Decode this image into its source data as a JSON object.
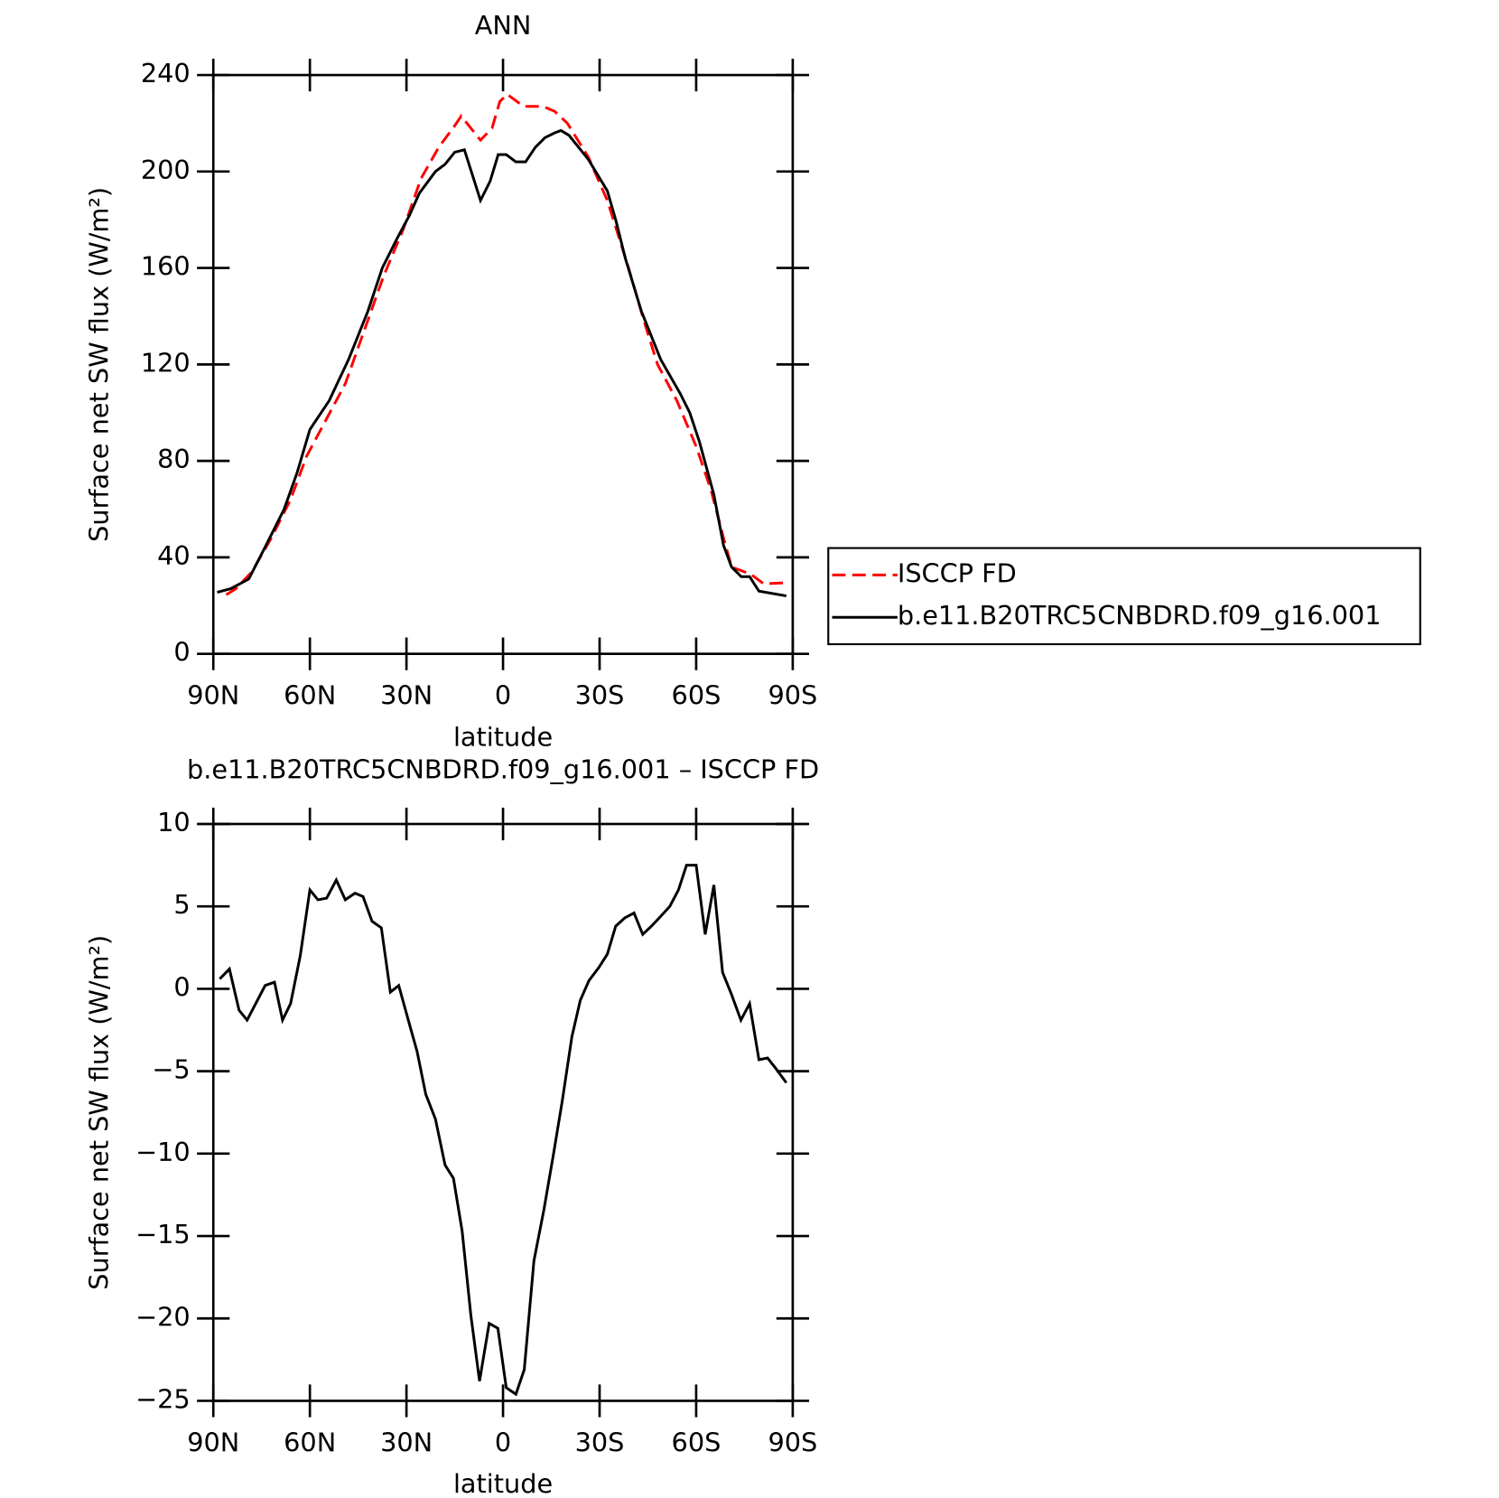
{
  "chart_data": [
    {
      "type": "line",
      "title": "ANN",
      "x_label": "latitude",
      "y_label": "Surface net SW flux (W/m²)",
      "xlim": [
        90,
        -90
      ],
      "xticks": [
        {
          "value": 90,
          "label": "90N"
        },
        {
          "value": 60,
          "label": "60N"
        },
        {
          "value": 30,
          "label": "30N"
        },
        0,
        {
          "value": -30,
          "label": "30S"
        },
        {
          "value": -60,
          "label": "60S"
        },
        {
          "value": -90,
          "label": "90S"
        }
      ],
      "ylim": [
        0,
        240
      ],
      "yticks": [
        0,
        40,
        80,
        120,
        160,
        200,
        240
      ],
      "legend": "right",
      "series": [
        {
          "name": "ISCCP FD",
          "color": "#ff0000",
          "dashed": true,
          "x": [
            86,
            83,
            78,
            72,
            66,
            61,
            55,
            49,
            43.4,
            37,
            31,
            25.5,
            20,
            15,
            13,
            10,
            7,
            3.4,
            1,
            -1.3,
            -6.4,
            -12.4,
            -16,
            -20,
            -26.5,
            -32.4,
            -39,
            -43.8,
            -48,
            -54,
            -60,
            -64.6,
            -68.5,
            -71,
            -77,
            -81,
            -88
          ],
          "values": [
            24.5,
            27,
            34,
            48,
            64,
            82,
            97,
            112,
            133,
            157,
            176,
            197,
            210,
            219,
            223,
            218,
            213,
            218,
            229,
            232,
            227,
            227,
            225,
            220,
            206,
            188,
            160,
            138,
            120,
            105,
            86,
            68,
            48,
            36,
            33,
            29,
            29.5
          ]
        },
        {
          "name": "b.e11.B20TRC5CNBDRD.f09_g16.001",
          "color": "#000000",
          "dashed": false,
          "x": [
            88.8,
            84.6,
            79,
            74,
            68,
            64,
            60,
            54,
            48,
            42,
            37.5,
            33,
            29,
            26,
            21,
            18,
            15,
            12,
            7,
            4,
            1.5,
            -1,
            -4,
            -7,
            -10,
            -13,
            -16,
            -18,
            -20.5,
            -26.5,
            -32.4,
            -35,
            -38,
            -43,
            -49,
            -55,
            -58,
            -61,
            -65.5,
            -68.5,
            -71,
            -74,
            -76.6,
            -79.5,
            -88
          ],
          "values": [
            25.5,
            27,
            31,
            44,
            60,
            75,
            93,
            105,
            122,
            142,
            160,
            172,
            182,
            191,
            200,
            203,
            208,
            209,
            188,
            196,
            207,
            207,
            204,
            204,
            210,
            214,
            216,
            217,
            215,
            205,
            192,
            180,
            164,
            142,
            122,
            108,
            100,
            88,
            66,
            45,
            36,
            32,
            32,
            26,
            24
          ]
        }
      ]
    },
    {
      "type": "line",
      "title": "b.e11.B20TRC5CNBDRD.f09_g16.001 – ISCCP FD",
      "x_label": "latitude",
      "y_label": "Surface net SW flux (W/m²)",
      "xlim": [
        90,
        -90
      ],
      "xticks": [
        {
          "value": 90,
          "label": "90N"
        },
        {
          "value": 60,
          "label": "60N"
        },
        {
          "value": 30,
          "label": "30N"
        },
        0,
        {
          "value": -30,
          "label": "30S"
        },
        {
          "value": -60,
          "label": "60S"
        },
        {
          "value": -90,
          "label": "90S"
        }
      ],
      "ylim": [
        -25,
        10
      ],
      "yticks": [
        {
          "value": -25,
          "label": "−25"
        },
        {
          "value": -20,
          "label": "−20"
        },
        {
          "value": -15,
          "label": "−15"
        },
        {
          "value": -10,
          "label": "−10"
        },
        {
          "value": -5,
          "label": "−5"
        },
        0,
        5,
        10
      ],
      "series": [
        {
          "color": "#000000",
          "dashed": false,
          "x": [
            88,
            85,
            82,
            79.5,
            73.9,
            71,
            68.5,
            66,
            63,
            60,
            57.5,
            54.8,
            51.8,
            49,
            46,
            43.5,
            40.7,
            37.8,
            35,
            32.4,
            29,
            26.7,
            24,
            21,
            18,
            15.4,
            12.7,
            10,
            7.3,
            4.3,
            1.6,
            -1,
            -4,
            -6.6,
            -9.6,
            -12.7,
            -15.7,
            -18.4,
            -21.4,
            -24,
            -26.7,
            -29.8,
            -32.4,
            -35,
            -37.8,
            -40.7,
            -43.4,
            -46.1,
            -49,
            -51.8,
            -54.5,
            -57,
            -60,
            -62.8,
            -65.5,
            -68.2,
            -70.9,
            -73.9,
            -76.6,
            -79.5,
            -82.2,
            -85,
            -88
          ],
          "values": [
            0.6,
            1.2,
            -1.3,
            -1.9,
            0.2,
            0.4,
            -1.9,
            -0.9,
            2,
            6,
            5.4,
            5.5,
            6.6,
            5.4,
            5.8,
            5.6,
            4.1,
            3.7,
            -0.2,
            0.2,
            -2.2,
            -3.8,
            -6.4,
            -7.9,
            -10.7,
            -11.5,
            -14.7,
            -19.8,
            -23.8,
            -20.3,
            -20.6,
            -24.2,
            -24.6,
            -23.1,
            -16.5,
            -13.4,
            -10,
            -6.8,
            -2.9,
            -0.7,
            0.5,
            1.3,
            2.1,
            3.8,
            4.3,
            4.6,
            3.3,
            3.8,
            4.4,
            5,
            6,
            7.5,
            7.5,
            3.3,
            6.3,
            1,
            -0.3,
            -1.9,
            -0.9,
            -4.3,
            -4.2,
            -4.9,
            -5.7
          ]
        }
      ]
    }
  ]
}
